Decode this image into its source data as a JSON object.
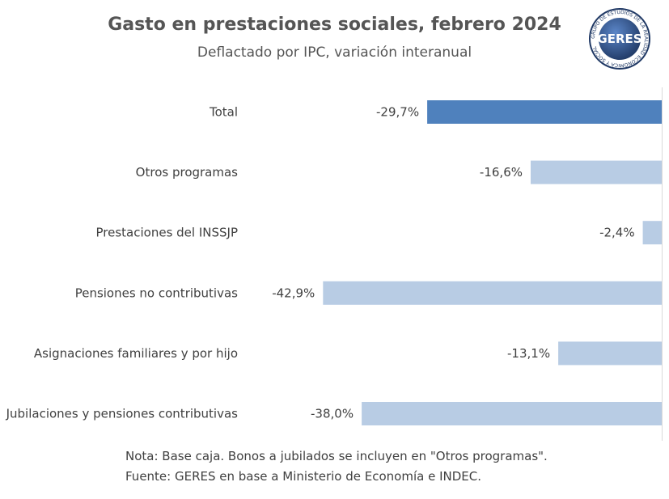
{
  "chart_data": {
    "type": "bar",
    "orientation": "horizontal",
    "title": "Gasto en prestaciones sociales, febrero 2024",
    "subtitle": "Deflactado por IPC, variación interanual",
    "categories": [
      "Total",
      "Otros programas",
      "Prestaciones del INSSJP",
      "Pensiones no contributivas",
      "Asignaciones familiares y por hijo",
      "Jubilaciones y pensiones contributivas"
    ],
    "values": [
      -29.7,
      -16.6,
      -2.4,
      -42.9,
      -13.1,
      -38.0
    ],
    "value_labels": [
      "-29,7%",
      "-16,6%",
      "-2,4%",
      "-42,9%",
      "-13,1%",
      "-38,0%"
    ],
    "xlim": [
      -50,
      0
    ],
    "grid": false,
    "legend": "none",
    "colors": {
      "highlight": "#4f81bd",
      "default": "#b8cce4",
      "axis": "#d9d9d9"
    },
    "note": "Nota: Base caja. Bonos a jubilados se incluyen en \"Otros programas\".",
    "source": "Fuente: GERES en base a Ministerio de Economía e INDEC."
  },
  "logo": {
    "text": "GERES",
    "ring_text": "GRUPO DE ESTUDIOS DE LA REALIDAD ECONÓMICA Y SOCIAL",
    "colors": {
      "ring": "#1f3864",
      "inner": "#2e5597",
      "text": "#ffffff"
    }
  }
}
